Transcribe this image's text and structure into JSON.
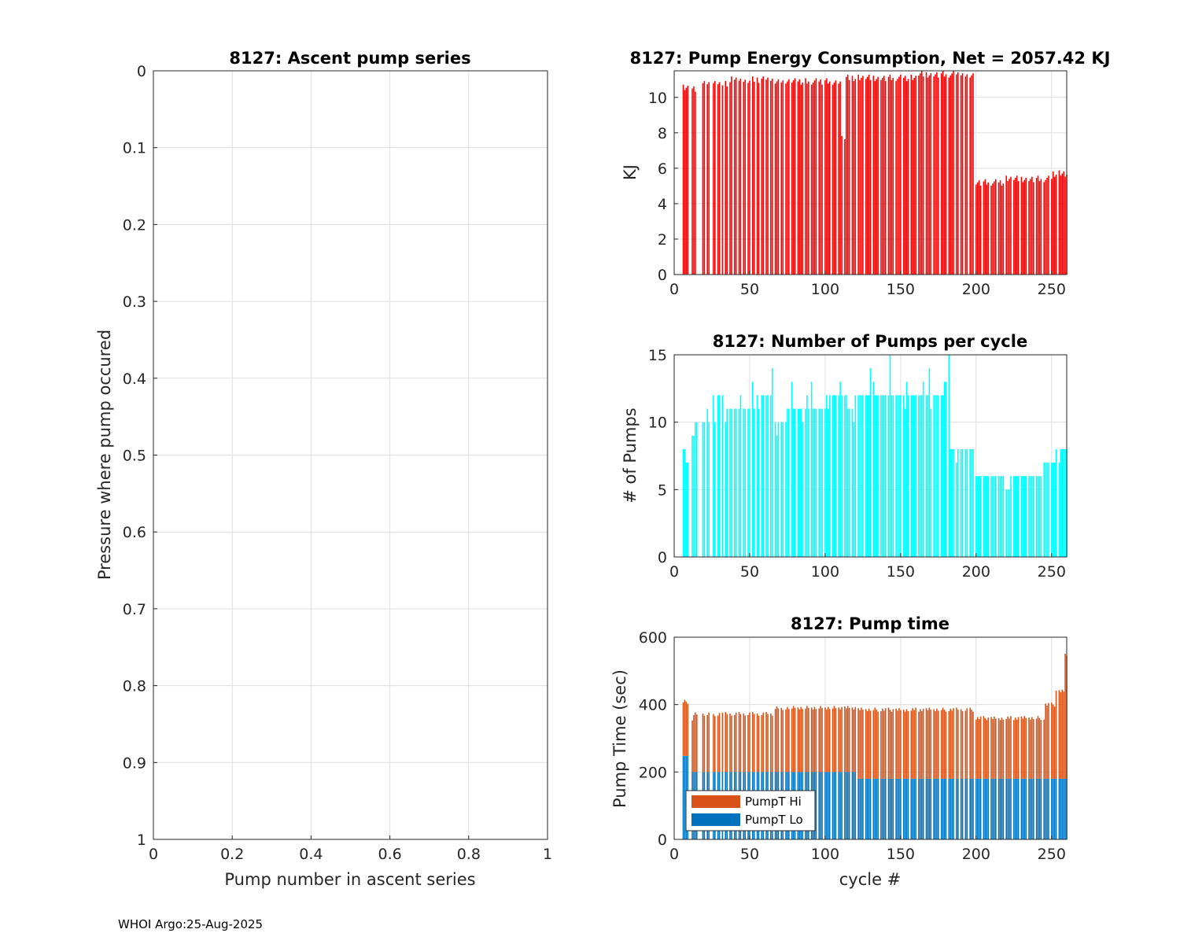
{
  "footer": "WHOI Argo:25-Aug-2025",
  "colors": {
    "energy": "#ff0000",
    "pumps": "#00ffff",
    "hi": "#d95319",
    "lo": "#0072bd",
    "grid": "#dfdfdf",
    "axis": "#262626"
  },
  "chart_data": [
    {
      "id": "ascent",
      "type": "line",
      "title": "8127: Ascent pump series",
      "xlabel": "Pump number in ascent series",
      "ylabel": "Pressure where pump occured",
      "xlim": [
        0,
        1
      ],
      "ylim": [
        0,
        1
      ],
      "y_reversed": true,
      "xticks": [
        "0",
        "0.2",
        "0.4",
        "0.6",
        "0.8",
        "1"
      ],
      "yticks": [
        "0",
        "0.1",
        "0.2",
        "0.3",
        "0.4",
        "0.5",
        "0.6",
        "0.7",
        "0.8",
        "0.9",
        "1"
      ],
      "series": []
    },
    {
      "id": "energy",
      "type": "bar",
      "title": "8127: Pump Energy Consumption,  Net = 2057.42 KJ",
      "xlabel": "",
      "ylabel": "KJ",
      "xlim": [
        0,
        260
      ],
      "ylim": [
        0,
        11.5
      ],
      "xticks": [
        "0",
        "50",
        "100",
        "150",
        "200",
        "250"
      ],
      "yticks": [
        "0",
        "2",
        "4",
        "6",
        "8",
        "10"
      ],
      "segments": [
        {
          "from": 6,
          "to": 9,
          "value": 10.6
        },
        {
          "from": 12,
          "to": 14,
          "value": 10.5
        },
        {
          "from": 19,
          "to": 37,
          "value": 10.8
        },
        {
          "from": 38,
          "to": 66,
          "value": 11.0
        },
        {
          "from": 67,
          "to": 110,
          "value": 10.9
        },
        {
          "from": 111,
          "to": 113,
          "value": 7.7
        },
        {
          "from": 114,
          "to": 160,
          "value": 11.1
        },
        {
          "from": 161,
          "to": 198,
          "value": 11.3
        },
        {
          "from": 199,
          "to": 218,
          "value": 5.2
        },
        {
          "from": 219,
          "to": 250,
          "value": 5.4
        },
        {
          "from": 251,
          "to": 260,
          "value": 5.7
        }
      ]
    },
    {
      "id": "pumps",
      "type": "bar",
      "title": "8127: Number of Pumps per cycle",
      "xlabel": "",
      "ylabel": "# of Pumps",
      "xlim": [
        0,
        260
      ],
      "ylim": [
        0,
        15
      ],
      "xticks": [
        "0",
        "50",
        "100",
        "150",
        "200",
        "250"
      ],
      "yticks": [
        "0",
        "5",
        "10",
        "15"
      ],
      "segments": [
        {
          "from": 6,
          "to": 7,
          "value": 8
        },
        {
          "from": 8,
          "to": 11,
          "value": 7
        },
        {
          "from": 12,
          "to": 13,
          "value": 9
        },
        {
          "from": 14,
          "to": 27,
          "value": 10
        },
        {
          "from": 28,
          "to": 33,
          "value": 12
        },
        {
          "from": 34,
          "to": 56,
          "value": 11
        },
        {
          "from": 57,
          "to": 66,
          "value": 12
        },
        {
          "from": 67,
          "to": 74,
          "value": 10
        },
        {
          "from": 75,
          "to": 100,
          "value": 11
        },
        {
          "from": 101,
          "to": 114,
          "value": 12
        },
        {
          "from": 115,
          "to": 119,
          "value": 11
        },
        {
          "from": 120,
          "to": 158,
          "value": 12
        },
        {
          "from": 159,
          "to": 178,
          "value": 12
        },
        {
          "from": 179,
          "to": 182,
          "value": 13
        },
        {
          "from": 183,
          "to": 198,
          "value": 8
        },
        {
          "from": 199,
          "to": 218,
          "value": 6
        },
        {
          "from": 219,
          "to": 222,
          "value": 5
        },
        {
          "from": 223,
          "to": 244,
          "value": 6
        },
        {
          "from": 245,
          "to": 252,
          "value": 7
        },
        {
          "from": 253,
          "to": 260,
          "value": 8
        }
      ]
    },
    {
      "id": "pumptime",
      "type": "bar",
      "stacked": true,
      "title": "8127: Pump time",
      "xlabel": "cycle #",
      "ylabel": "Pump Time (sec)",
      "xlim": [
        0,
        260
      ],
      "ylim": [
        0,
        600
      ],
      "xticks": [
        "0",
        "50",
        "100",
        "150",
        "200",
        "250"
      ],
      "yticks": [
        "0",
        "200",
        "400",
        "600"
      ],
      "legend": {
        "position": "bottom-left",
        "entries": [
          "PumpT Hi",
          "PumpT Lo"
        ]
      },
      "series": [
        {
          "name": "PumpT Lo",
          "segments": [
            {
              "from": 6,
              "to": 9,
              "value": 248
            },
            {
              "from": 10,
              "to": 120,
              "value": 200
            },
            {
              "from": 121,
              "to": 260,
              "value": 180
            }
          ]
        },
        {
          "name": "PumpT Hi",
          "segments": [
            {
              "from": 6,
              "to": 9,
              "value": 160
            },
            {
              "from": 10,
              "to": 12,
              "value": 150
            },
            {
              "from": 13,
              "to": 66,
              "value": 172
            },
            {
              "from": 67,
              "to": 120,
              "value": 190
            },
            {
              "from": 121,
              "to": 198,
              "value": 205
            },
            {
              "from": 199,
              "to": 245,
              "value": 180
            },
            {
              "from": 246,
              "to": 252,
              "value": 220
            },
            {
              "from": 253,
              "to": 258,
              "value": 260
            },
            {
              "from": 259,
              "to": 260,
              "value": 365
            }
          ]
        }
      ]
    }
  ]
}
